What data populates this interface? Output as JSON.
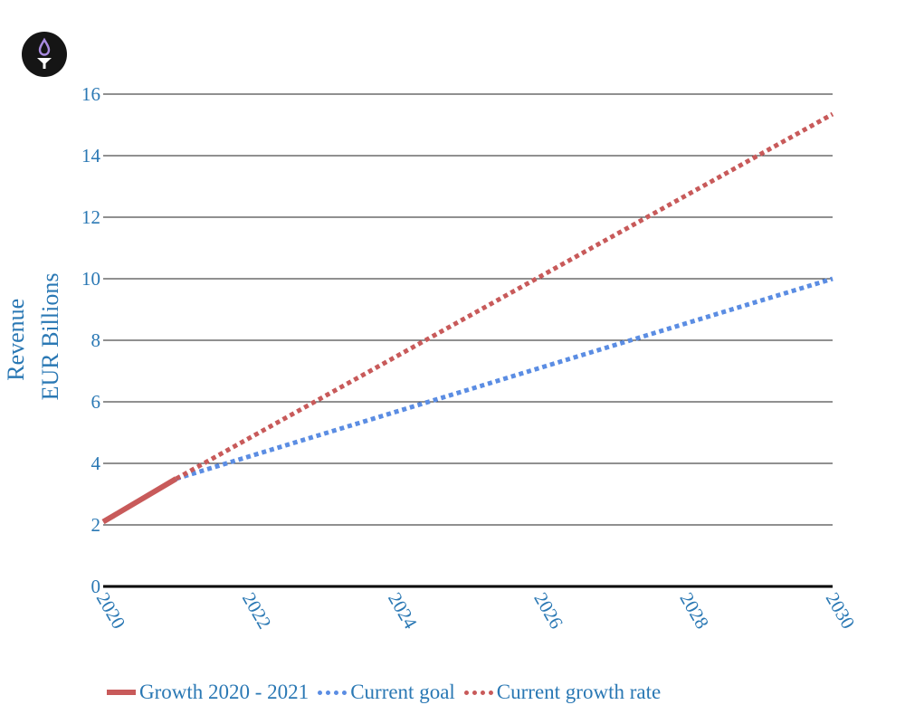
{
  "logo": {
    "icon": "flame-y-logo-icon",
    "bg": "#151515"
  },
  "chart_data": {
    "type": "line",
    "ylabel": [
      "Revenue",
      "EUR Billions"
    ],
    "xlim": [
      2020,
      2030
    ],
    "ylim": [
      0,
      16
    ],
    "x_ticks": [
      "2020",
      "2022",
      "2024",
      "2026",
      "2028",
      "2030"
    ],
    "y_ticks": [
      "0",
      "2",
      "4",
      "6",
      "8",
      "10",
      "12",
      "14",
      "16"
    ],
    "grid": true,
    "legend_position": "bottom",
    "series": [
      {
        "name": "Growth 2020 - 2021",
        "style": "solid",
        "color": "#c85a5a",
        "x": [
          2020,
          2021
        ],
        "y": [
          2.1,
          3.5
        ]
      },
      {
        "name": "Current goal",
        "style": "dotted",
        "color": "#5b8de3",
        "x": [
          2021,
          2030
        ],
        "y": [
          3.5,
          10.0
        ]
      },
      {
        "name": "Current growth rate",
        "style": "dotted",
        "color": "#c85a5a",
        "x": [
          2021,
          2030
        ],
        "y": [
          3.5,
          15.35
        ]
      }
    ]
  }
}
